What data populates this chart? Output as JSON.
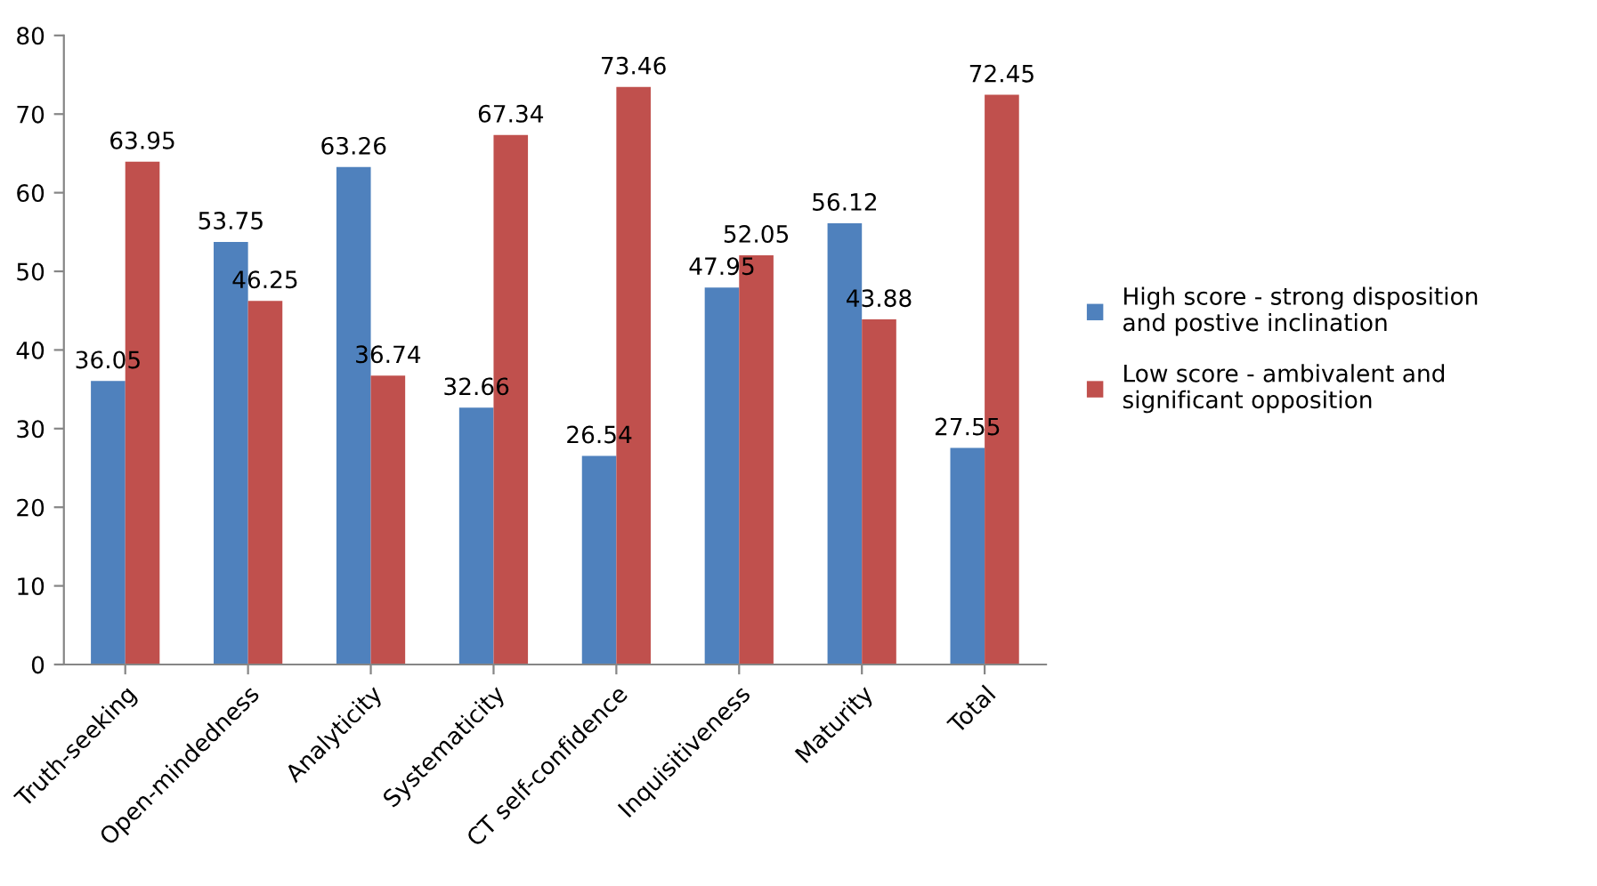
{
  "chart_data": {
    "type": "bar",
    "categories": [
      "Truth-seeking",
      "Open-mindedness",
      "Analyticity",
      "Systematicity",
      "CT self-confidence",
      "Inquisitiveness",
      "Maturity",
      "Total"
    ],
    "series": [
      {
        "name": "High score - strong disposition\nand postive inclination",
        "color": "#4f81bd",
        "values": [
          36.05,
          53.75,
          63.26,
          32.66,
          26.54,
          47.95,
          56.12,
          27.55
        ]
      },
      {
        "name": "Low score - ambivalent and\nsignificant opposition",
        "color": "#c0504d",
        "values": [
          63.95,
          46.25,
          36.74,
          67.34,
          73.46,
          52.05,
          43.88,
          72.45
        ]
      }
    ],
    "ylim": [
      0,
      80
    ],
    "yticks": [
      0,
      10,
      20,
      30,
      40,
      50,
      60,
      70,
      80
    ],
    "data_labels": true,
    "legend": "right",
    "grid": false
  }
}
